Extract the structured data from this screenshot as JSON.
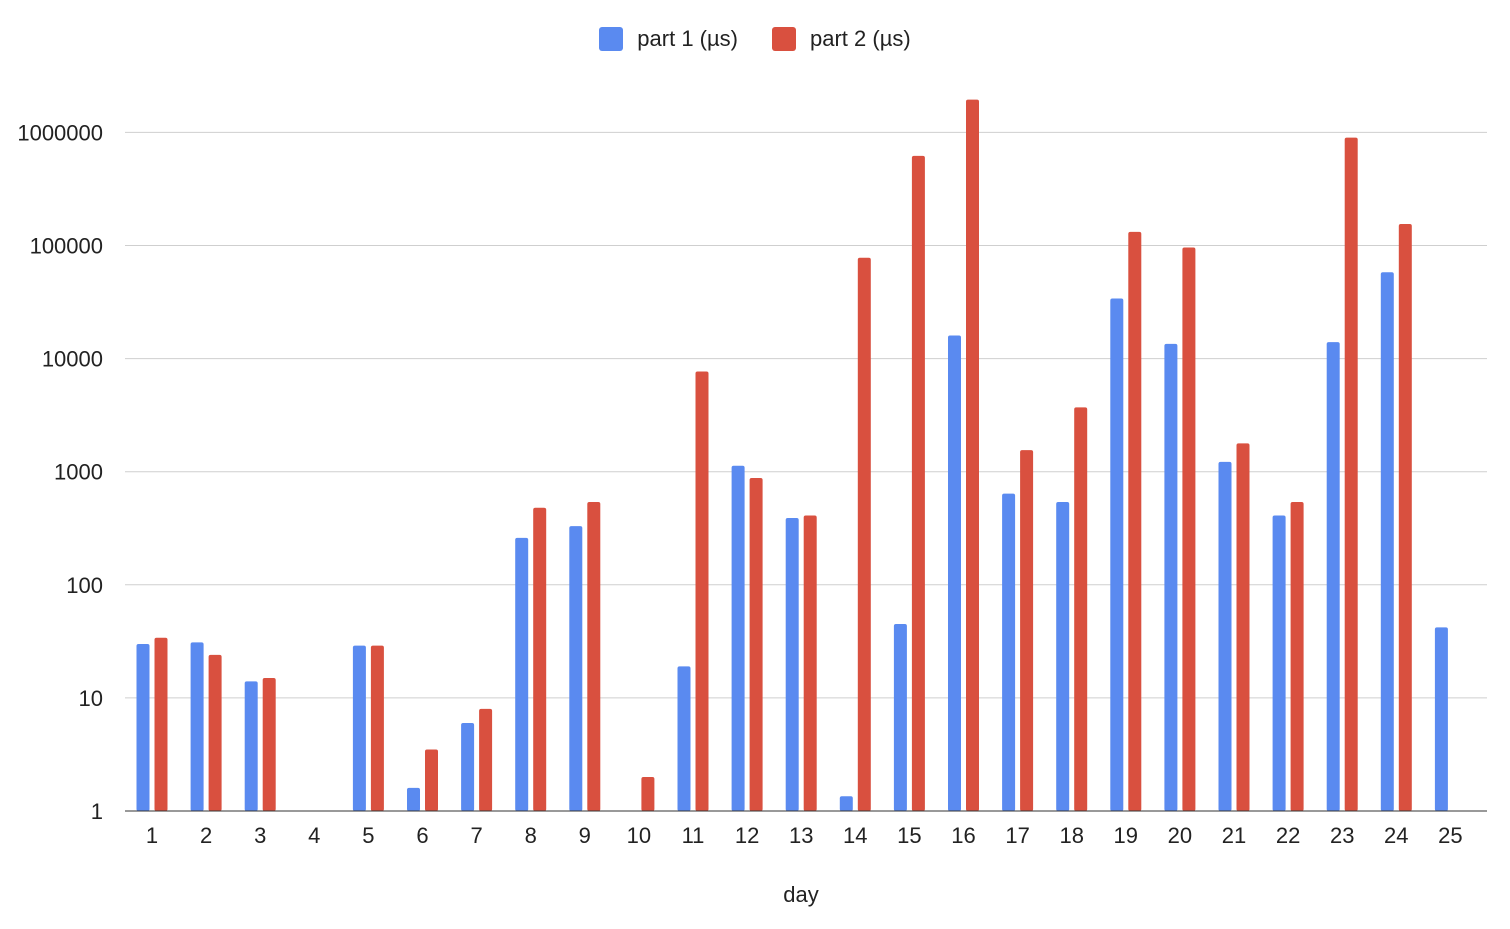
{
  "chart_data": {
    "type": "bar",
    "title": "",
    "xlabel": "day",
    "ylabel": "",
    "yscale": "log",
    "ylim": [
      1,
      2000000
    ],
    "y_ticks": [
      1,
      10,
      100,
      1000,
      10000,
      100000,
      1000000
    ],
    "y_tick_labels": [
      "1",
      "10",
      "100",
      "1000",
      "10000",
      "100000",
      "1000000"
    ],
    "grid": true,
    "legend_position": "top-center",
    "categories": [
      "1",
      "2",
      "3",
      "4",
      "5",
      "6",
      "7",
      "8",
      "9",
      "10",
      "11",
      "12",
      "13",
      "14",
      "15",
      "16",
      "17",
      "18",
      "19",
      "20",
      "21",
      "22",
      "23",
      "24",
      "25"
    ],
    "series": [
      {
        "name": "part 1 (µs)",
        "color": "#5a8af0",
        "values": [
          30,
          31,
          14,
          null,
          29,
          1.6,
          6,
          260,
          330,
          null,
          19,
          1130,
          390,
          1.35,
          45,
          16000,
          640,
          540,
          34000,
          13500,
          1220,
          410,
          14000,
          58000,
          42
        ]
      },
      {
        "name": "part 2 (µs)",
        "color": "#d9503f",
        "values": [
          34,
          24,
          15,
          null,
          29,
          3.5,
          8,
          480,
          540,
          2,
          7700,
          880,
          410,
          78000,
          620000,
          1950000,
          1550,
          3700,
          132000,
          96000,
          1780,
          540,
          900000,
          155000,
          null
        ]
      }
    ]
  }
}
